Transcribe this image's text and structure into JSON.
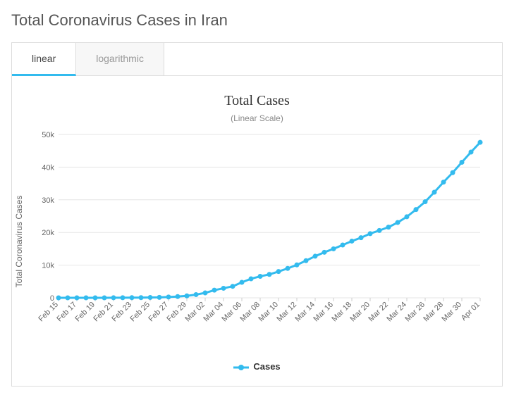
{
  "page": {
    "title": "Total Coronavirus Cases in Iran"
  },
  "tabs": {
    "items": [
      {
        "label": "linear",
        "active": true
      },
      {
        "label": "logarithmic",
        "active": false
      }
    ]
  },
  "chart": {
    "type": "line",
    "title": "Total Cases",
    "subtitle": "(Linear Scale)",
    "ylabel": "Total Coronavirus Cases",
    "title_fontsize": 20,
    "subtitle_fontsize": 12,
    "label_fontsize": 12,
    "tick_fontsize": 11,
    "background_color": "#ffffff",
    "grid_color": "#e6e6e6",
    "axis_color": "#cccccc",
    "line_color": "#33bbee",
    "marker_color": "#33bbee",
    "line_width": 3,
    "marker_radius": 3.5,
    "ylim": [
      0,
      50000
    ],
    "ytick_step": 10000,
    "yticks": [
      {
        "v": 0,
        "label": "0"
      },
      {
        "v": 10000,
        "label": "10k"
      },
      {
        "v": 20000,
        "label": "20k"
      },
      {
        "v": 30000,
        "label": "30k"
      },
      {
        "v": 40000,
        "label": "40k"
      },
      {
        "v": 50000,
        "label": "50k"
      }
    ],
    "xtick_step": 2,
    "categories": [
      "Feb 15",
      "Feb 16",
      "Feb 17",
      "Feb 18",
      "Feb 19",
      "Feb 20",
      "Feb 21",
      "Feb 22",
      "Feb 23",
      "Feb 24",
      "Feb 25",
      "Feb 26",
      "Feb 27",
      "Feb 28",
      "Feb 29",
      "Mar 01",
      "Mar 02",
      "Mar 03",
      "Mar 04",
      "Mar 05",
      "Mar 06",
      "Mar 07",
      "Mar 08",
      "Mar 09",
      "Mar 10",
      "Mar 11",
      "Mar 12",
      "Mar 13",
      "Mar 14",
      "Mar 15",
      "Mar 16",
      "Mar 17",
      "Mar 18",
      "Mar 19",
      "Mar 20",
      "Mar 21",
      "Mar 22",
      "Mar 23",
      "Mar 24",
      "Mar 25",
      "Mar 26",
      "Mar 27",
      "Mar 28",
      "Mar 29",
      "Mar 30",
      "Mar 31",
      "Apr 01"
    ],
    "series": [
      {
        "name": "Cases",
        "values": [
          0,
          0,
          0,
          0,
          2,
          5,
          18,
          28,
          43,
          61,
          95,
          139,
          245,
          388,
          593,
          978,
          1501,
          2336,
          2922,
          3513,
          4747,
          5823,
          6566,
          7161,
          8042,
          9000,
          10075,
          11364,
          12729,
          13938,
          14991,
          16169,
          17361,
          18407,
          19644,
          20610,
          21638,
          23049,
          24811,
          27017,
          29406,
          32332,
          35408,
          38309,
          41495,
          44605,
          47593
        ]
      }
    ],
    "legend": {
      "position": "bottom",
      "label": "Cases"
    }
  }
}
